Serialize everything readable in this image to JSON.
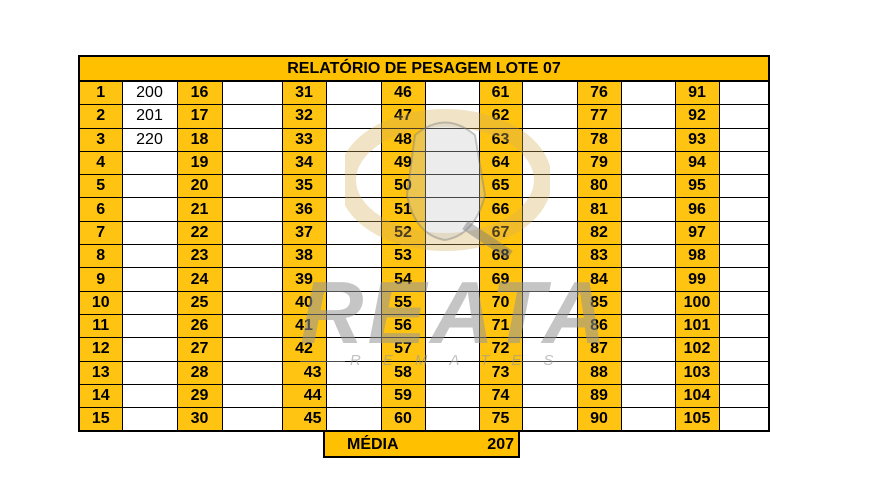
{
  "report": {
    "title": "RELATÓRIO DE PESAGEM LOTE  07",
    "rows": [
      [
        [
          "1",
          "200"
        ],
        [
          "16",
          ""
        ],
        [
          "31",
          ""
        ],
        [
          "46",
          ""
        ],
        [
          "61",
          ""
        ],
        [
          "76",
          ""
        ],
        [
          "91",
          ""
        ]
      ],
      [
        [
          "2",
          "201"
        ],
        [
          "17",
          ""
        ],
        [
          "32",
          ""
        ],
        [
          "47",
          ""
        ],
        [
          "62",
          ""
        ],
        [
          "77",
          ""
        ],
        [
          "92",
          ""
        ]
      ],
      [
        [
          "3",
          "220"
        ],
        [
          "18",
          ""
        ],
        [
          "33",
          ""
        ],
        [
          "48",
          ""
        ],
        [
          "63",
          ""
        ],
        [
          "78",
          ""
        ],
        [
          "93",
          ""
        ]
      ],
      [
        [
          "4",
          ""
        ],
        [
          "19",
          ""
        ],
        [
          "34",
          ""
        ],
        [
          "49",
          ""
        ],
        [
          "64",
          ""
        ],
        [
          "79",
          ""
        ],
        [
          "94",
          ""
        ]
      ],
      [
        [
          "5",
          ""
        ],
        [
          "20",
          ""
        ],
        [
          "35",
          ""
        ],
        [
          "50",
          ""
        ],
        [
          "65",
          ""
        ],
        [
          "80",
          ""
        ],
        [
          "95",
          ""
        ]
      ],
      [
        [
          "6",
          ""
        ],
        [
          "21",
          ""
        ],
        [
          "36",
          ""
        ],
        [
          "51",
          ""
        ],
        [
          "66",
          ""
        ],
        [
          "81",
          ""
        ],
        [
          "96",
          ""
        ]
      ],
      [
        [
          "7",
          ""
        ],
        [
          "22",
          ""
        ],
        [
          "37",
          ""
        ],
        [
          "52",
          ""
        ],
        [
          "67",
          ""
        ],
        [
          "82",
          ""
        ],
        [
          "97",
          ""
        ]
      ],
      [
        [
          "8",
          ""
        ],
        [
          "23",
          ""
        ],
        [
          "38",
          ""
        ],
        [
          "53",
          ""
        ],
        [
          "68",
          ""
        ],
        [
          "83",
          ""
        ],
        [
          "98",
          ""
        ]
      ],
      [
        [
          "9",
          ""
        ],
        [
          "24",
          ""
        ],
        [
          "39",
          ""
        ],
        [
          "54",
          ""
        ],
        [
          "69",
          ""
        ],
        [
          "84",
          ""
        ],
        [
          "99",
          ""
        ]
      ],
      [
        [
          "10",
          ""
        ],
        [
          "25",
          ""
        ],
        [
          "40",
          ""
        ],
        [
          "55",
          ""
        ],
        [
          "70",
          ""
        ],
        [
          "85",
          ""
        ],
        [
          "100",
          ""
        ]
      ],
      [
        [
          "11",
          ""
        ],
        [
          "26",
          ""
        ],
        [
          "41",
          ""
        ],
        [
          "56",
          ""
        ],
        [
          "71",
          ""
        ],
        [
          "86",
          ""
        ],
        [
          "101",
          ""
        ]
      ],
      [
        [
          "12",
          ""
        ],
        [
          "27",
          ""
        ],
        [
          "42",
          ""
        ],
        [
          "57",
          ""
        ],
        [
          "72",
          ""
        ],
        [
          "87",
          ""
        ],
        [
          "102",
          ""
        ]
      ],
      [
        [
          "13",
          ""
        ],
        [
          "28",
          ""
        ],
        [
          "43",
          ""
        ],
        [
          "58",
          ""
        ],
        [
          "73",
          ""
        ],
        [
          "88",
          ""
        ],
        [
          "103",
          ""
        ]
      ],
      [
        [
          "14",
          ""
        ],
        [
          "29",
          ""
        ],
        [
          "44",
          ""
        ],
        [
          "59",
          ""
        ],
        [
          "74",
          ""
        ],
        [
          "89",
          ""
        ],
        [
          "104",
          ""
        ]
      ],
      [
        [
          "15",
          ""
        ],
        [
          "30",
          ""
        ],
        [
          "45",
          ""
        ],
        [
          "60",
          ""
        ],
        [
          "75",
          ""
        ],
        [
          "90",
          ""
        ],
        [
          "105",
          ""
        ]
      ]
    ],
    "average_label": "MÉDIA",
    "average_value": "207"
  },
  "watermark": {
    "brand": "REATA",
    "tagline": "REMATES"
  },
  "colors": {
    "header_fill": "#FFC000",
    "border": "#000000"
  }
}
